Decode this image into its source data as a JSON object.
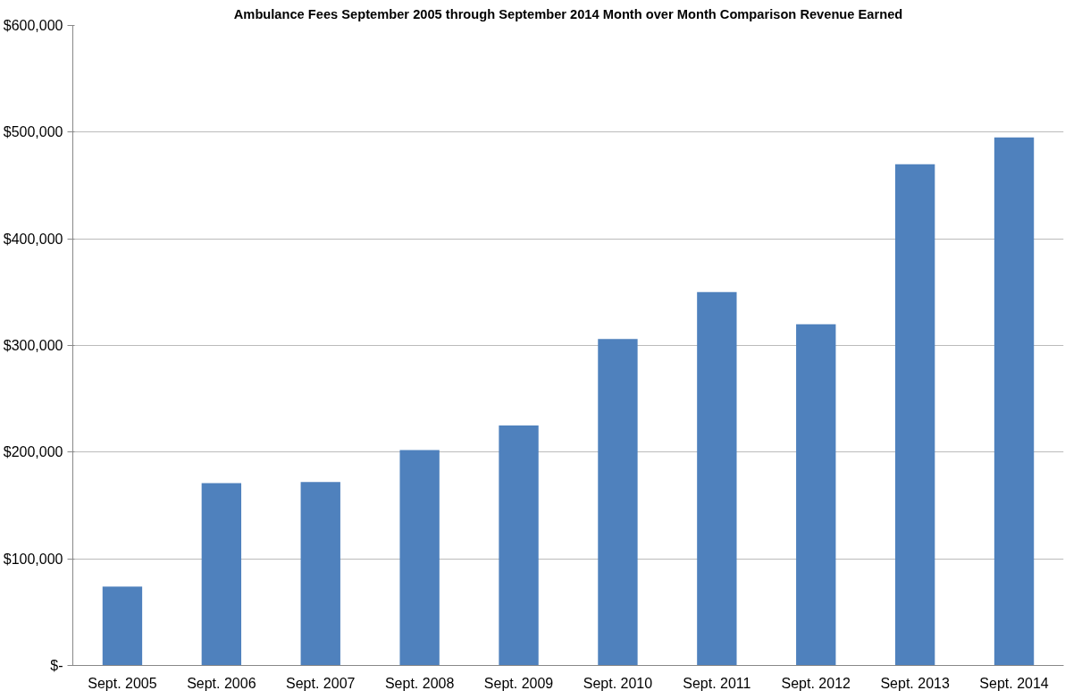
{
  "chart_data": {
    "type": "bar",
    "title": "Ambulance Fees September 2005 through September 2014 Month over Month Comparison Revenue Earned",
    "categories": [
      "Sept. 2005",
      "Sept. 2006",
      "Sept. 2007",
      "Sept. 2008",
      "Sept. 2009",
      "Sept. 2010",
      "Sept. 2011",
      "Sept. 2012",
      "Sept. 2013",
      "Sept. 2014"
    ],
    "values": [
      74000,
      171000,
      172000,
      202000,
      225000,
      306000,
      350000,
      320000,
      470000,
      495000
    ],
    "color": "#4f81bd",
    "ylim": [
      0,
      600000
    ],
    "yticks": [
      {
        "value": 0,
        "label": "$-"
      },
      {
        "value": 100000,
        "label": "$100,000"
      },
      {
        "value": 200000,
        "label": "$200,000"
      },
      {
        "value": 300000,
        "label": "$300,000"
      },
      {
        "value": 400000,
        "label": "$400,000"
      },
      {
        "value": 500000,
        "label": "$500,000"
      },
      {
        "value": 600000,
        "label": "$600,000"
      }
    ],
    "grid": "y"
  }
}
